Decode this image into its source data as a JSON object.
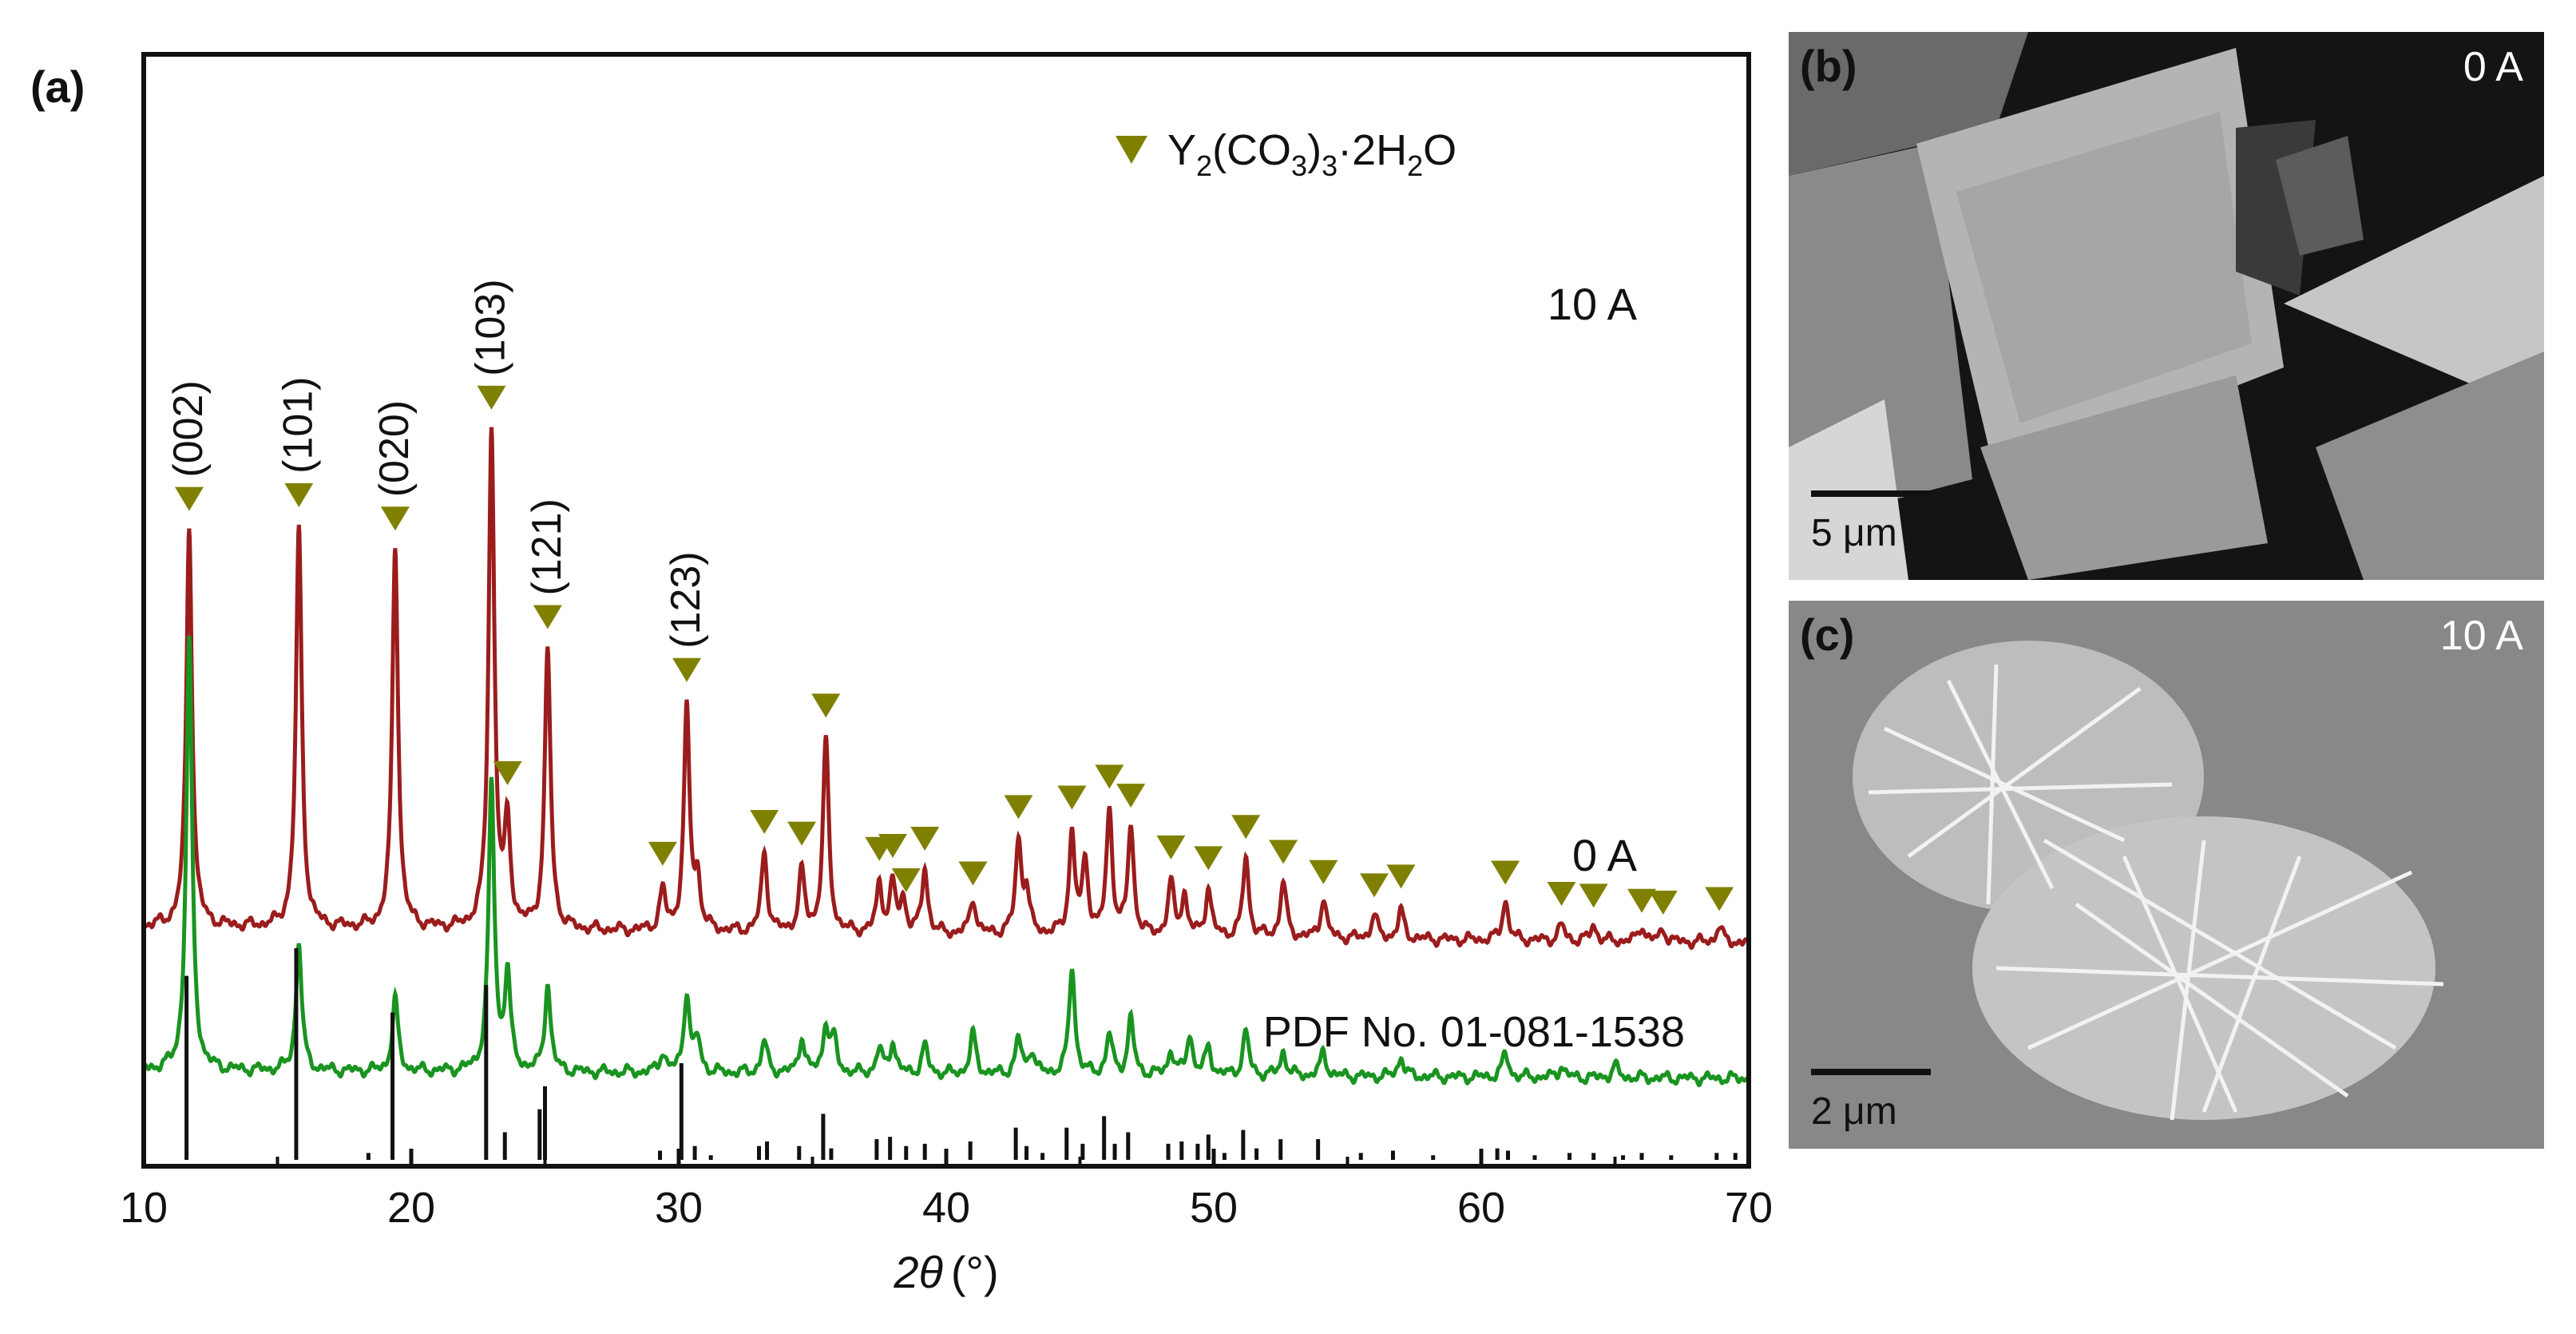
{
  "chart_data": {
    "type": "line",
    "panel_label": "(a)",
    "xlabel": "2θ (°)",
    "xlabel_parts": {
      "var": "2θ",
      "unit": "(°)"
    },
    "ylabel": "",
    "xlim": [
      10,
      70
    ],
    "xticks": [
      10,
      20,
      30,
      40,
      50,
      60,
      70
    ],
    "legend": {
      "label": "Y2(CO3)3·2H2O",
      "marker": "inverted-triangle",
      "color": "#808000",
      "placement": "top-right"
    },
    "series": [
      {
        "name": "10 A",
        "label": "10 A",
        "color": "#9b1c1c",
        "baseline": 0.56,
        "peaks": [
          [
            11.7,
            1.0
          ],
          [
            15.8,
            1.0
          ],
          [
            19.4,
            0.96
          ],
          [
            23.0,
            1.25
          ],
          [
            23.6,
            0.25
          ],
          [
            25.1,
            0.7
          ],
          [
            29.4,
            0.1
          ],
          [
            30.3,
            0.55
          ],
          [
            30.7,
            0.12
          ],
          [
            33.2,
            0.2
          ],
          [
            34.6,
            0.15
          ],
          [
            35.5,
            0.48
          ],
          [
            37.5,
            0.12
          ],
          [
            38.0,
            0.12
          ],
          [
            38.4,
            0.08
          ],
          [
            39.2,
            0.16
          ],
          [
            41.0,
            0.09
          ],
          [
            42.7,
            0.23
          ],
          [
            43.0,
            0.1
          ],
          [
            44.7,
            0.25
          ],
          [
            45.2,
            0.18
          ],
          [
            46.1,
            0.31
          ],
          [
            46.9,
            0.27
          ],
          [
            48.4,
            0.13
          ],
          [
            48.9,
            0.1
          ],
          [
            49.8,
            0.12
          ],
          [
            51.2,
            0.2
          ],
          [
            52.6,
            0.14
          ],
          [
            54.1,
            0.1
          ],
          [
            56.0,
            0.06
          ],
          [
            57.0,
            0.07
          ],
          [
            60.9,
            0.1
          ],
          [
            63.0,
            0.04
          ],
          [
            64.2,
            0.04
          ],
          [
            66.0,
            0.04
          ],
          [
            66.8,
            0.03
          ],
          [
            68.9,
            0.04
          ]
        ]
      },
      {
        "name": "0 A",
        "label": "0 A",
        "color": "#1a9420",
        "baseline": 0.22,
        "peaks": [
          [
            11.7,
            1.08
          ],
          [
            15.8,
            0.32
          ],
          [
            19.4,
            0.18
          ],
          [
            23.0,
            0.72
          ],
          [
            23.6,
            0.24
          ],
          [
            25.1,
            0.22
          ],
          [
            29.4,
            0.05
          ],
          [
            30.3,
            0.2
          ],
          [
            30.7,
            0.08
          ],
          [
            33.2,
            0.08
          ],
          [
            34.6,
            0.09
          ],
          [
            35.5,
            0.12
          ],
          [
            35.8,
            0.08
          ],
          [
            37.5,
            0.06
          ],
          [
            38.0,
            0.08
          ],
          [
            39.2,
            0.07
          ],
          [
            41.0,
            0.1
          ],
          [
            42.7,
            0.09
          ],
          [
            43.2,
            0.06
          ],
          [
            44.7,
            0.27
          ],
          [
            46.1,
            0.1
          ],
          [
            46.9,
            0.14
          ],
          [
            48.4,
            0.06
          ],
          [
            49.1,
            0.1
          ],
          [
            49.8,
            0.07
          ],
          [
            51.2,
            0.11
          ],
          [
            52.6,
            0.06
          ],
          [
            54.1,
            0.06
          ],
          [
            57.0,
            0.05
          ],
          [
            60.9,
            0.06
          ],
          [
            63.0,
            0.03
          ],
          [
            65.0,
            0.03
          ]
        ]
      }
    ],
    "reference": {
      "label": "PDF No. 01-081-1538",
      "sticks": [
        [
          11.6,
          0.8
        ],
        [
          15.7,
          0.92
        ],
        [
          18.4,
          0.03
        ],
        [
          19.3,
          0.64
        ],
        [
          22.8,
          0.76
        ],
        [
          23.5,
          0.12
        ],
        [
          24.8,
          0.22
        ],
        [
          25.0,
          0.32
        ],
        [
          29.3,
          0.04
        ],
        [
          30.1,
          0.42
        ],
        [
          30.6,
          0.06
        ],
        [
          31.2,
          0.02
        ],
        [
          33.0,
          0.06
        ],
        [
          33.3,
          0.08
        ],
        [
          34.5,
          0.06
        ],
        [
          35.4,
          0.2
        ],
        [
          35.7,
          0.05
        ],
        [
          37.4,
          0.09
        ],
        [
          37.9,
          0.1
        ],
        [
          38.5,
          0.06
        ],
        [
          39.2,
          0.07
        ],
        [
          40.9,
          0.08
        ],
        [
          42.6,
          0.14
        ],
        [
          43.0,
          0.06
        ],
        [
          43.6,
          0.03
        ],
        [
          44.5,
          0.14
        ],
        [
          45.1,
          0.07
        ],
        [
          45.9,
          0.19
        ],
        [
          46.3,
          0.07
        ],
        [
          46.8,
          0.12
        ],
        [
          48.3,
          0.07
        ],
        [
          48.8,
          0.08
        ],
        [
          49.4,
          0.07
        ],
        [
          49.8,
          0.11
        ],
        [
          50.4,
          0.03
        ],
        [
          51.1,
          0.13
        ],
        [
          51.6,
          0.05
        ],
        [
          52.5,
          0.09
        ],
        [
          53.9,
          0.09
        ],
        [
          55.5,
          0.03
        ],
        [
          56.7,
          0.04
        ],
        [
          58.2,
          0.02
        ],
        [
          60.6,
          0.05
        ],
        [
          61.0,
          0.04
        ],
        [
          62.0,
          0.02
        ],
        [
          63.3,
          0.03
        ],
        [
          64.2,
          0.03
        ],
        [
          65.3,
          0.02
        ],
        [
          66.0,
          0.03
        ],
        [
          67.1,
          0.02
        ],
        [
          68.8,
          0.03
        ],
        [
          69.5,
          0.03
        ]
      ]
    },
    "markers_x": [
      11.7,
      15.8,
      19.4,
      23.0,
      23.6,
      25.1,
      29.4,
      30.3,
      33.2,
      34.6,
      35.5,
      37.5,
      38.0,
      38.5,
      39.2,
      41.0,
      42.7,
      44.7,
      46.1,
      46.9,
      48.4,
      49.8,
      51.2,
      52.6,
      54.1,
      56.0,
      57.0,
      60.9,
      63.0,
      64.2,
      66.0,
      66.8,
      68.9
    ],
    "peak_labels": [
      {
        "x": 11.7,
        "text": "(002)"
      },
      {
        "x": 15.8,
        "text": "(101)"
      },
      {
        "x": 19.4,
        "text": "(020)"
      },
      {
        "x": 23.0,
        "text": "(103)"
      },
      {
        "x": 25.1,
        "text": "(121)"
      },
      {
        "x": 30.3,
        "text": "(123)"
      }
    ]
  },
  "sem_panels": [
    {
      "label": "(b)",
      "tag": "0 A",
      "scale_bar": "5 μm"
    },
    {
      "label": "(c)",
      "tag": "10 A",
      "scale_bar": "2 μm"
    }
  ]
}
